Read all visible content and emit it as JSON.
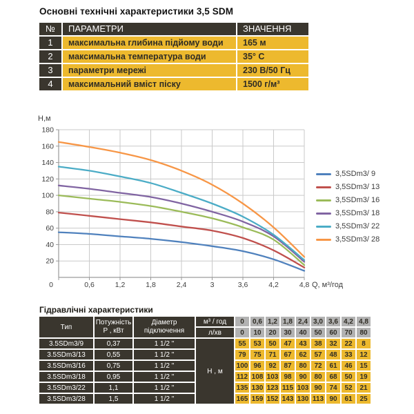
{
  "title": "Основні технічні характеристики 3,5 SDM",
  "specs_table": {
    "headers": {
      "num": "№",
      "param": "ПАРАМЕТРИ",
      "value": "ЗНАЧЕННЯ"
    },
    "rows": [
      {
        "num": "1",
        "param": "максимальна глибина підйому води",
        "value": "165 м"
      },
      {
        "num": "2",
        "param": "максимальна температура води",
        "value": "35° C"
      },
      {
        "num": "3",
        "param": "параметри мережі",
        "value": "230 В/50 Гц"
      },
      {
        "num": "4",
        "param": "максимальний вміст піску",
        "value": "1500 г/м³"
      }
    ]
  },
  "chart_data": {
    "type": "line",
    "title": "",
    "ylabel": "Н,м",
    "xlabel": "Q, м³/год",
    "x_values": [
      0,
      0.6,
      1.2,
      1.8,
      2.4,
      3.0,
      3.6,
      4.2,
      4.8
    ],
    "x_tick_labels": [
      "0",
      "0,6",
      "1,2",
      "1,8",
      "2,4",
      "3",
      "3,6",
      "4,2",
      "4,8"
    ],
    "y_ticks": [
      20,
      40,
      60,
      80,
      100,
      120,
      140,
      160,
      180
    ],
    "ylim": [
      0,
      180
    ],
    "xlim": [
      0,
      4.8
    ],
    "grid": true,
    "legend_position": "right",
    "series": [
      {
        "name": "3,5SDm3/ 9",
        "color": "#4f81bd",
        "values": [
          55,
          53,
          50,
          47,
          43,
          38,
          32,
          22,
          8
        ]
      },
      {
        "name": "3,5SDm3/ 13",
        "color": "#c0504d",
        "values": [
          79,
          75,
          71,
          67,
          62,
          57,
          48,
          33,
          12
        ]
      },
      {
        "name": "3,5SDm3/ 16",
        "color": "#9bbb59",
        "values": [
          100,
          96,
          92,
          87,
          80,
          72,
          61,
          46,
          15
        ]
      },
      {
        "name": "3,5SDm3/ 18",
        "color": "#8064a2",
        "values": [
          112,
          108,
          103,
          98,
          90,
          80,
          68,
          50,
          19
        ]
      },
      {
        "name": "3,5SDm3/ 22",
        "color": "#4bacc6",
        "values": [
          135,
          130,
          123,
          115,
          103,
          90,
          74,
          52,
          21
        ]
      },
      {
        "name": "3,5SDm3/ 28",
        "color": "#f79646",
        "values": [
          165,
          159,
          152,
          143,
          130,
          113,
          90,
          61,
          25
        ]
      }
    ]
  },
  "hydraulics_table": {
    "title": "Гідравлічні характеристики",
    "headers": {
      "type": "Тип",
      "power": [
        "Потужність",
        "P , кВт"
      ],
      "diameter": [
        "Діаметр",
        "підключення"
      ],
      "flow_m3_label": "м³ / год",
      "flow_lmin_label": "л/хв",
      "head_label": "Н , м"
    },
    "flow_m3_values": [
      "0",
      "0,6",
      "1,2",
      "1,8",
      "2,4",
      "3,0",
      "3,6",
      "4,2",
      "4,8"
    ],
    "flow_lmin_values": [
      "0",
      "10",
      "20",
      "30",
      "40",
      "50",
      "60",
      "70",
      "80"
    ],
    "rows": [
      {
        "type": "3.5SDm3/9",
        "power": "0,37",
        "diameter": "1 1/2 \"",
        "head": [
          55,
          53,
          50,
          47,
          43,
          38,
          32,
          22,
          8
        ]
      },
      {
        "type": "3.5SDm3/13",
        "power": "0,55",
        "diameter": "1 1/2 \"",
        "head": [
          79,
          75,
          71,
          67,
          62,
          57,
          48,
          33,
          12
        ]
      },
      {
        "type": "3.5SDm3/16",
        "power": "0,75",
        "diameter": "1 1/2 \"",
        "head": [
          100,
          96,
          92,
          87,
          80,
          72,
          61,
          46,
          15
        ]
      },
      {
        "type": "3.5SDm3/18",
        "power": "0,95",
        "diameter": "1 1/2 \"",
        "head": [
          112,
          108,
          103,
          98,
          90,
          80,
          68,
          50,
          19
        ]
      },
      {
        "type": "3.5SDm3/22",
        "power": "1,1",
        "diameter": "1 1/2 \"",
        "head": [
          135,
          130,
          123,
          115,
          103,
          90,
          74,
          52,
          21
        ]
      },
      {
        "type": "3.5SDm3/28",
        "power": "1,5",
        "diameter": "1 1/2 \"",
        "head": [
          165,
          159,
          152,
          143,
          130,
          113,
          90,
          61,
          25
        ]
      }
    ]
  },
  "colors": {
    "dark_cell": "#3a362e",
    "gold_cell": "#edb92e",
    "gray_cell": "#b2b2b2",
    "grid_line": "#c9c9c9",
    "axis_line": "#9a9a9a",
    "chart_text": "#3d3d3d"
  }
}
